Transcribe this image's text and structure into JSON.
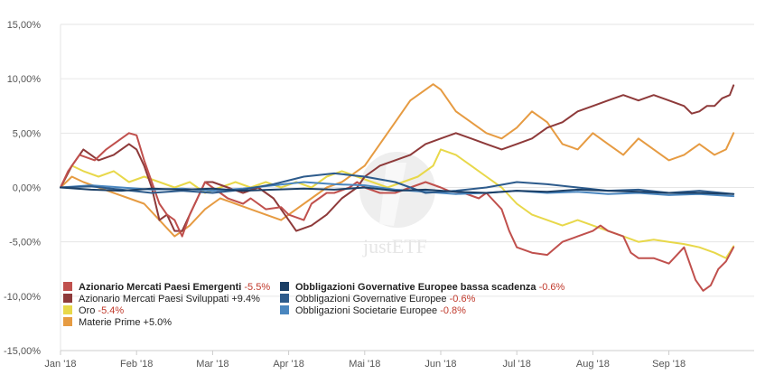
{
  "chart_data": {
    "type": "line",
    "title": "",
    "xlabel": "",
    "ylabel": "",
    "ylim": [
      -15,
      15
    ],
    "y_ticks": [
      15,
      10,
      5,
      0,
      -5,
      -10,
      -15
    ],
    "y_tick_labels": [
      "15,00%",
      "10,00%",
      "5,00%",
      "0,00%",
      "-5,00%",
      "-10,00%",
      "-15,00%"
    ],
    "x_tick_labels": [
      "Jan '18",
      "Feb '18",
      "Mar '18",
      "Apr '18",
      "Mai '18",
      "Jun '18",
      "Jul '18",
      "Aug '18",
      "Sep '18"
    ],
    "x_month_positions": [
      0,
      1,
      2,
      3,
      4,
      5,
      6,
      7,
      8
    ],
    "x_range": [
      0,
      8.95
    ],
    "watermark": "justETF",
    "series": [
      {
        "name": "Azionario Mercati Paesi Emergenti",
        "value_label": "-5.5%",
        "color": "#c0504d",
        "x": [
          0,
          0.1,
          0.25,
          0.45,
          0.6,
          0.8,
          0.9,
          1.0,
          1.1,
          1.3,
          1.4,
          1.5,
          1.6,
          1.7,
          1.8,
          1.9,
          2.0,
          2.2,
          2.4,
          2.5,
          2.7,
          2.9,
          3.0,
          3.2,
          3.3,
          3.5,
          3.6,
          3.8,
          3.9,
          4.0,
          4.2,
          4.4,
          4.6,
          4.8,
          5.0,
          5.1,
          5.3,
          5.5,
          5.6,
          5.8,
          5.9,
          6.0,
          6.2,
          6.4,
          6.6,
          6.8,
          7.0,
          7.1,
          7.2,
          7.4,
          7.5,
          7.6,
          7.8,
          8.0,
          8.2,
          8.35,
          8.45,
          8.55,
          8.65,
          8.75,
          8.85
        ],
        "values": [
          0,
          1.5,
          3.0,
          2.5,
          3.5,
          4.5,
          5.0,
          4.8,
          2.5,
          -1.5,
          -2.5,
          -3.0,
          -4.5,
          -2.5,
          -1.0,
          0.5,
          0.0,
          -1.0,
          -1.5,
          -1.0,
          -2.0,
          -1.8,
          -2.5,
          -3.0,
          -1.5,
          -0.5,
          -0.5,
          0.0,
          0.5,
          0.0,
          -0.5,
          -0.5,
          0.0,
          0.5,
          0.0,
          -0.3,
          -0.5,
          -1.0,
          -0.5,
          -2.0,
          -4.0,
          -5.5,
          -6.0,
          -6.2,
          -5.0,
          -4.5,
          -4.0,
          -3.5,
          -4.0,
          -4.5,
          -6.0,
          -6.5,
          -6.5,
          -7.0,
          -5.5,
          -8.5,
          -9.5,
          -9.0,
          -7.5,
          -6.8,
          -5.5
        ]
      },
      {
        "name": "Azionario Mercati Paesi Sviluppati",
        "value_label": "+9.4%",
        "color": "#8e3a3a",
        "x": [
          0,
          0.15,
          0.3,
          0.5,
          0.7,
          0.9,
          1.0,
          1.1,
          1.2,
          1.3,
          1.4,
          1.5,
          1.6,
          1.7,
          1.8,
          1.9,
          2.0,
          2.2,
          2.4,
          2.6,
          2.8,
          2.9,
          3.0,
          3.1,
          3.3,
          3.5,
          3.7,
          3.9,
          4.0,
          4.2,
          4.4,
          4.6,
          4.8,
          5.0,
          5.2,
          5.4,
          5.6,
          5.8,
          6.0,
          6.2,
          6.4,
          6.6,
          6.8,
          7.0,
          7.2,
          7.4,
          7.6,
          7.8,
          8.0,
          8.2,
          8.3,
          8.4,
          8.5,
          8.6,
          8.7,
          8.8,
          8.85
        ],
        "values": [
          0,
          2.0,
          3.5,
          2.5,
          3.0,
          4.0,
          3.5,
          2.0,
          0.0,
          -3.0,
          -2.5,
          -4.0,
          -4.0,
          -2.5,
          -1.0,
          0.5,
          0.5,
          0.0,
          -0.5,
          0.0,
          -1.0,
          -2.0,
          -3.0,
          -4.0,
          -3.5,
          -2.5,
          -1.0,
          0.0,
          1.0,
          2.0,
          2.5,
          3.0,
          4.0,
          4.5,
          5.0,
          4.5,
          4.0,
          3.5,
          4.0,
          4.5,
          5.5,
          6.0,
          7.0,
          7.5,
          8.0,
          8.5,
          8.0,
          8.5,
          8.0,
          7.5,
          6.8,
          7.0,
          7.5,
          7.5,
          8.2,
          8.5,
          9.4
        ]
      },
      {
        "name": "Oro",
        "value_label": "-5.4%",
        "color": "#e8d84a",
        "x": [
          0,
          0.15,
          0.3,
          0.5,
          0.7,
          0.9,
          1.1,
          1.3,
          1.5,
          1.7,
          1.9,
          2.1,
          2.3,
          2.5,
          2.7,
          2.9,
          3.1,
          3.3,
          3.5,
          3.7,
          3.9,
          4.1,
          4.3,
          4.5,
          4.7,
          4.9,
          5.0,
          5.2,
          5.4,
          5.6,
          5.8,
          6.0,
          6.2,
          6.4,
          6.6,
          6.8,
          7.0,
          7.2,
          7.4,
          7.6,
          7.8,
          8.0,
          8.2,
          8.4,
          8.6,
          8.75,
          8.85
        ],
        "values": [
          0,
          2.0,
          1.5,
          1.0,
          1.5,
          0.5,
          1.0,
          0.5,
          0.0,
          0.5,
          -0.5,
          0.0,
          0.5,
          0.0,
          0.5,
          0.0,
          0.5,
          0.0,
          1.0,
          1.5,
          1.0,
          0.5,
          0.0,
          0.5,
          1.0,
          2.0,
          3.5,
          3.0,
          2.0,
          1.0,
          0.0,
          -1.5,
          -2.5,
          -3.0,
          -3.5,
          -3.0,
          -3.5,
          -4.0,
          -4.5,
          -5.0,
          -4.8,
          -5.0,
          -5.2,
          -5.5,
          -6.0,
          -6.5,
          -5.4
        ]
      },
      {
        "name": "Materie Prime",
        "value_label": "+5.0%",
        "color": "#e69b42",
        "x": [
          0,
          0.15,
          0.3,
          0.5,
          0.7,
          0.9,
          1.1,
          1.3,
          1.5,
          1.7,
          1.9,
          2.1,
          2.3,
          2.5,
          2.7,
          2.9,
          3.1,
          3.3,
          3.5,
          3.7,
          3.9,
          4.0,
          4.2,
          4.4,
          4.6,
          4.8,
          4.9,
          5.0,
          5.2,
          5.4,
          5.6,
          5.8,
          6.0,
          6.2,
          6.4,
          6.6,
          6.8,
          7.0,
          7.2,
          7.4,
          7.6,
          7.8,
          8.0,
          8.2,
          8.4,
          8.6,
          8.75,
          8.85
        ],
        "values": [
          0,
          1.0,
          0.5,
          0.0,
          -0.5,
          -1.0,
          -1.5,
          -3.0,
          -4.5,
          -3.5,
          -2.0,
          -1.0,
          -1.5,
          -2.0,
          -2.5,
          -3.0,
          -2.0,
          -1.0,
          0.0,
          0.5,
          1.5,
          2.0,
          4.0,
          6.0,
          8.0,
          9.0,
          9.5,
          9.0,
          7.0,
          6.0,
          5.0,
          4.5,
          5.5,
          7.0,
          6.0,
          4.0,
          3.5,
          5.0,
          4.0,
          3.0,
          4.5,
          3.5,
          2.5,
          3.0,
          4.0,
          3.0,
          3.5,
          5.0
        ]
      },
      {
        "name": "Obbligazioni Governative Europee bassa scadenza",
        "value_label": "-0.6%",
        "color": "#1b3f66",
        "x": [
          0,
          0.4,
          0.8,
          1.2,
          1.6,
          2.0,
          2.4,
          2.8,
          3.2,
          3.6,
          4.0,
          4.4,
          4.8,
          5.2,
          5.6,
          6.0,
          6.4,
          6.8,
          7.2,
          7.6,
          8.0,
          8.4,
          8.85
        ],
        "values": [
          0,
          -0.2,
          -0.3,
          -0.1,
          -0.2,
          -0.1,
          -0.3,
          -0.2,
          -0.1,
          -0.2,
          0.0,
          -0.3,
          -0.2,
          -0.4,
          -0.5,
          -0.3,
          -0.4,
          -0.2,
          -0.3,
          -0.4,
          -0.5,
          -0.5,
          -0.6
        ]
      },
      {
        "name": "Obbligazioni Governative Europee",
        "value_label": "-0.6%",
        "color": "#2d5b8c",
        "x": [
          0,
          0.4,
          0.8,
          1.2,
          1.6,
          2.0,
          2.4,
          2.8,
          3.2,
          3.6,
          4.0,
          4.4,
          4.8,
          5.2,
          5.6,
          6.0,
          6.4,
          6.8,
          7.2,
          7.6,
          8.0,
          8.4,
          8.85
        ],
        "values": [
          0,
          0.1,
          -0.2,
          -0.5,
          -0.3,
          -0.5,
          -0.2,
          0.3,
          1.0,
          1.3,
          1.0,
          0.5,
          -0.5,
          -0.3,
          0.0,
          0.5,
          0.3,
          0.0,
          -0.3,
          -0.2,
          -0.5,
          -0.3,
          -0.6
        ]
      },
      {
        "name": "Obbligazioni Societarie Europee",
        "value_label": "-0.8%",
        "color": "#4a86bf",
        "x": [
          0,
          0.4,
          0.8,
          1.2,
          1.6,
          2.0,
          2.4,
          2.8,
          3.2,
          3.6,
          4.0,
          4.4,
          4.8,
          5.2,
          5.6,
          6.0,
          6.4,
          6.8,
          7.2,
          7.6,
          8.0,
          8.4,
          8.85
        ],
        "values": [
          0,
          0.2,
          0.0,
          -0.2,
          -0.1,
          -0.3,
          -0.1,
          0.2,
          0.5,
          0.3,
          0.2,
          -0.2,
          -0.4,
          -0.6,
          -0.5,
          -0.3,
          -0.5,
          -0.4,
          -0.6,
          -0.5,
          -0.7,
          -0.6,
          -0.8
        ]
      }
    ]
  }
}
